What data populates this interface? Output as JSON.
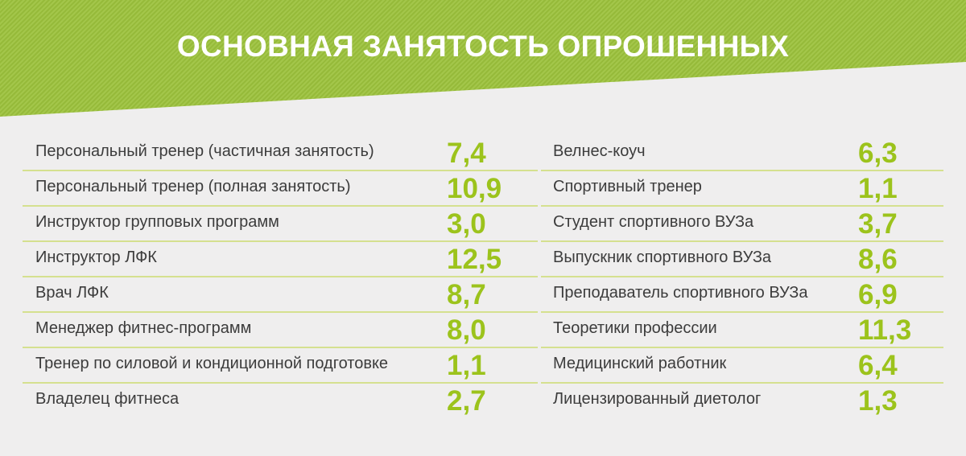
{
  "header": {
    "title": "ОСНОВНАЯ ЗАНЯТОСТЬ ОПРОШЕННЫХ"
  },
  "colors": {
    "banner": "#9cc23c",
    "value": "#9cc31c",
    "divider": "#d5e08f",
    "background": "#efeeee"
  },
  "left_rows": [
    {
      "label": "Персональный тренер (частичная занятость)",
      "value": "7,4"
    },
    {
      "label": "Персональный тренер (полная занятость)",
      "value": "10,9"
    },
    {
      "label": "Инструктор групповых программ",
      "value": "3,0"
    },
    {
      "label": "Инструктор ЛФК",
      "value": "12,5"
    },
    {
      "label": "Врач ЛФК",
      "value": "8,7"
    },
    {
      "label": "Менеджер фитнес-программ",
      "value": "8,0"
    },
    {
      "label": "Тренер по силовой и кондиционной подготовке",
      "value": "1,1"
    },
    {
      "label": "Владелец фитнеса",
      "value": "2,7"
    }
  ],
  "right_rows": [
    {
      "label": "Велнес-коуч",
      "value": "6,3"
    },
    {
      "label": "Спортивный тренер",
      "value": "1,1"
    },
    {
      "label": "Студент спортивного ВУЗа",
      "value": "3,7"
    },
    {
      "label": "Выпускник спортивного ВУЗа",
      "value": "8,6"
    },
    {
      "label": "Преподаватель спортивного ВУЗа",
      "value": "6,9"
    },
    {
      "label": "Теоретики профессии",
      "value": "11,3"
    },
    {
      "label": "Медицинский работник",
      "value": "6,4"
    },
    {
      "label": "Лицензированный диетолог",
      "value": "1,3"
    }
  ]
}
